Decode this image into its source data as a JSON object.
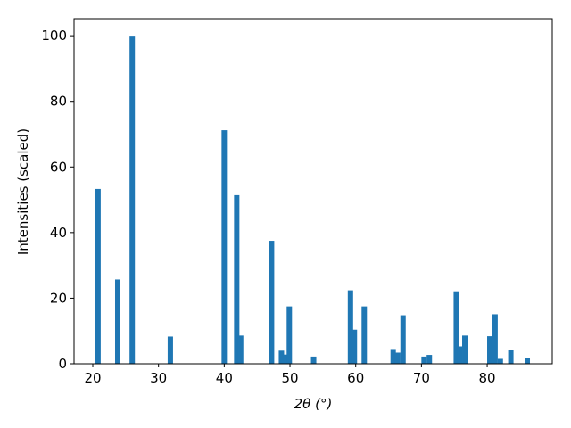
{
  "chart_data": {
    "type": "bar",
    "x": [
      20.8,
      23.8,
      26.0,
      31.8,
      40.0,
      41.9,
      42.5,
      47.2,
      48.7,
      49.3,
      49.9,
      53.6,
      59.2,
      59.8,
      61.3,
      65.7,
      66.4,
      67.2,
      70.4,
      71.2,
      75.3,
      75.8,
      76.6,
      80.4,
      81.2,
      82.0,
      83.6,
      86.1
    ],
    "values": [
      53.3,
      25.7,
      100,
      8.3,
      71.2,
      51.4,
      8.6,
      37.5,
      4,
      2.8,
      17.5,
      2.2,
      22.4,
      10.4,
      17.5,
      4.5,
      3.4,
      14.8,
      2.2,
      2.7,
      22.1,
      5.3,
      8.6,
      8.4,
      15.1,
      1.5,
      4.2,
      1.7
    ],
    "color": "#1f77b4",
    "xlabel": "2θ (°)",
    "ylabel": "Intensities (scaled)",
    "xlim": [
      17.15,
      89.9
    ],
    "ylim": [
      0,
      105.2
    ],
    "xticks": [
      20,
      30,
      40,
      50,
      60,
      70,
      80
    ],
    "yticks": [
      0,
      20,
      40,
      60,
      80,
      100
    ]
  }
}
